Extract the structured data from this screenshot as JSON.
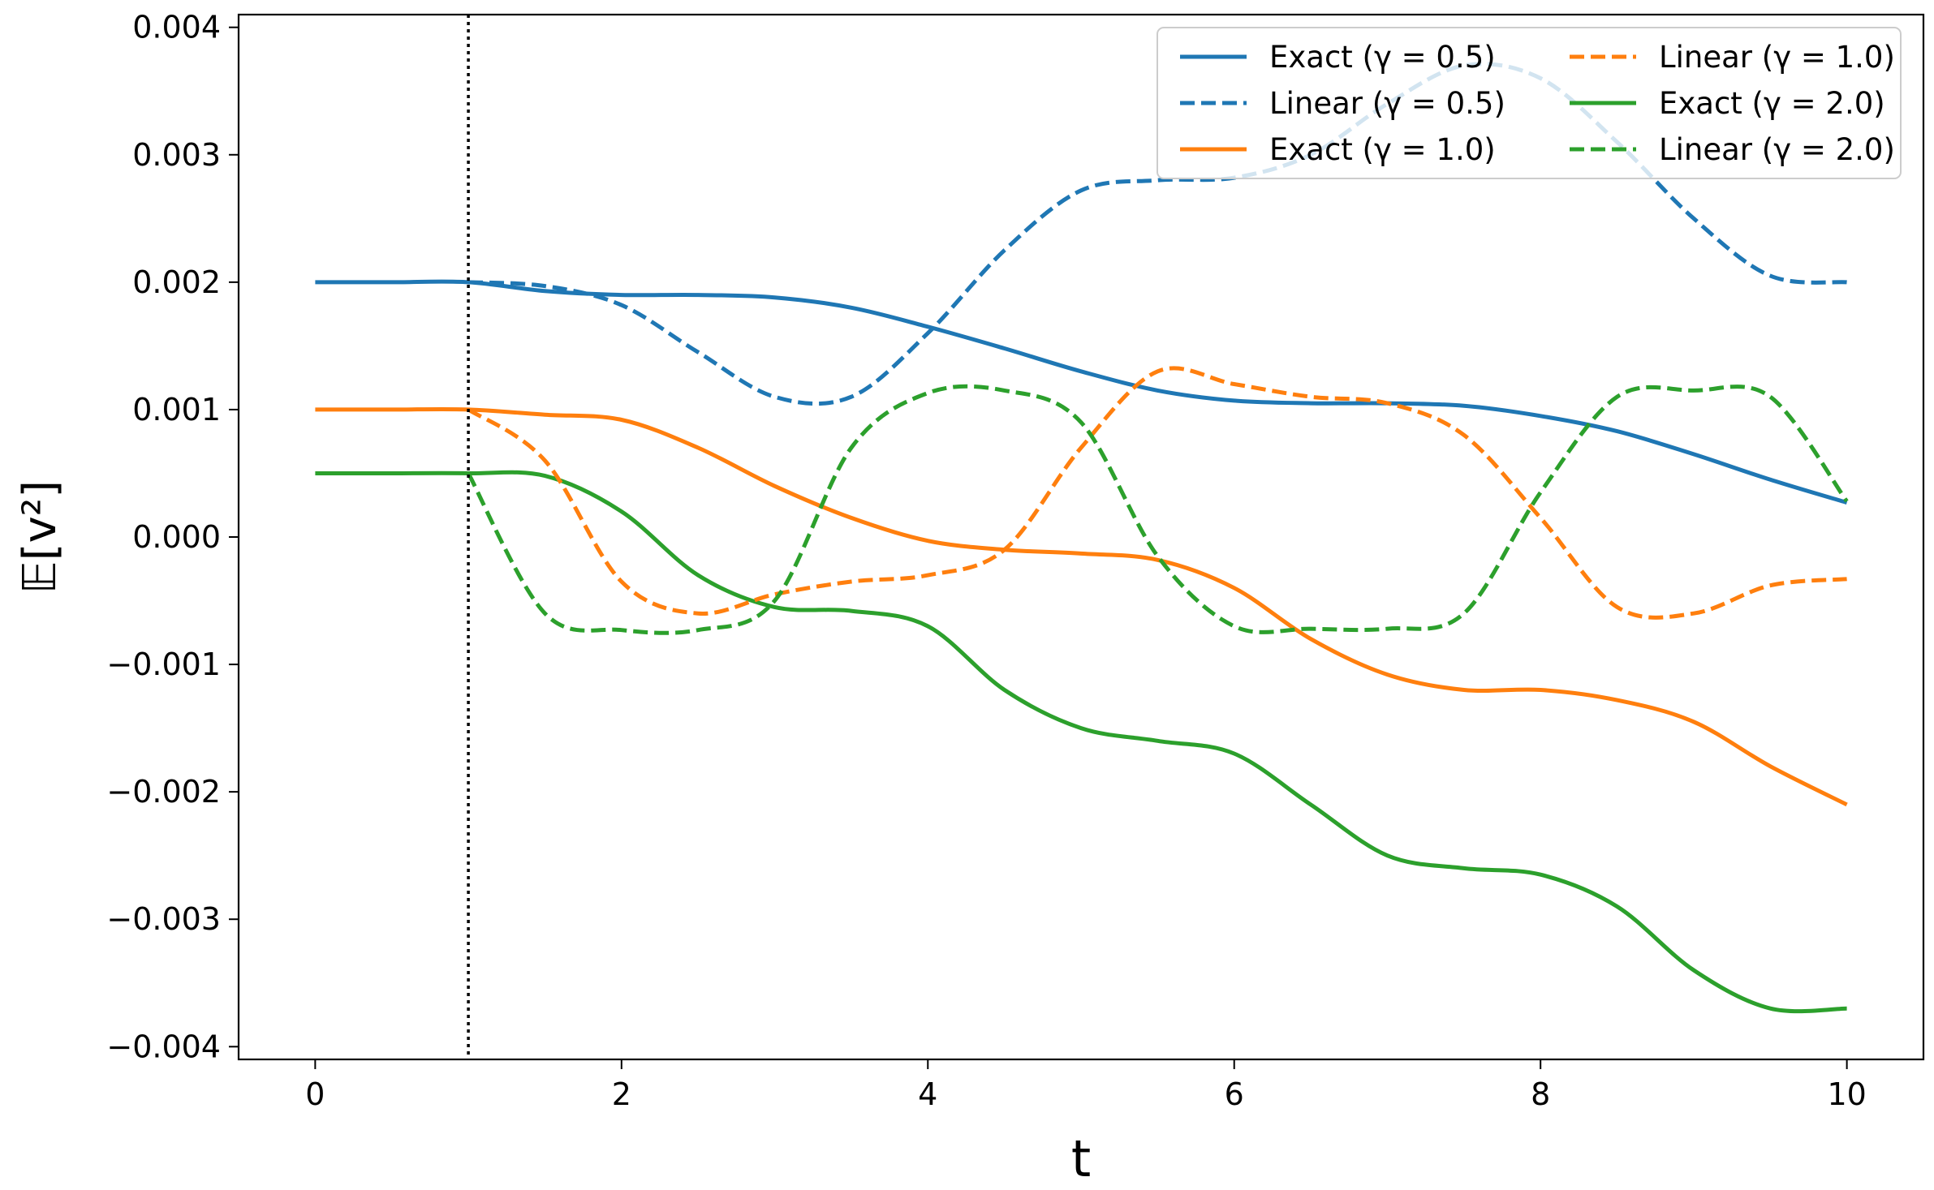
{
  "chart_data": {
    "type": "line",
    "xlabel": "t",
    "ylabel": "𝔼[v²]",
    "xlim": [
      -0.5,
      10.5
    ],
    "ylim": [
      -0.0041,
      0.0041
    ],
    "xticks": [
      0,
      2,
      4,
      6,
      8,
      10
    ],
    "yticks": [
      0.004,
      0.003,
      0.002,
      0.001,
      0.0,
      -0.001,
      -0.002,
      -0.003,
      -0.004
    ],
    "xtick_labels": [
      "0",
      "2",
      "4",
      "6",
      "8",
      "10"
    ],
    "ytick_labels": [
      "0.004",
      "0.003",
      "0.002",
      "0.001",
      "0.000",
      "−0.001",
      "−0.002",
      "−0.003",
      "−0.004"
    ],
    "vline": {
      "x": 1.0,
      "style": "dotted",
      "color": "#000000"
    },
    "grid": false,
    "legend": {
      "placement": "top-right",
      "columns": 2
    },
    "x": [
      0,
      0.5,
      1,
      1.5,
      2,
      2.5,
      3,
      3.5,
      4,
      4.5,
      5,
      5.5,
      6,
      6.5,
      7,
      7.5,
      8,
      8.5,
      9,
      9.5,
      10
    ],
    "series": [
      {
        "name": "Exact (γ = 0.5)",
        "color": "#1f77b4",
        "dash": "solid",
        "values": [
          0.002,
          0.002,
          0.002,
          0.00193,
          0.0019,
          0.0019,
          0.00188,
          0.0018,
          0.00165,
          0.00148,
          0.0013,
          0.00115,
          0.00107,
          0.00105,
          0.00105,
          0.00103,
          0.00095,
          0.00083,
          0.00065,
          0.00045,
          0.00027
        ]
      },
      {
        "name": "Linear (γ = 0.5)",
        "color": "#1f77b4",
        "dash": "dashed",
        "values": [
          null,
          null,
          0.002,
          0.00197,
          0.00182,
          0.00145,
          0.0011,
          0.0011,
          0.0016,
          0.00225,
          0.00272,
          0.0028,
          0.00282,
          0.003,
          0.0034,
          0.0037,
          0.0036,
          0.0031,
          0.0025,
          0.00205,
          0.002
        ]
      },
      {
        "name": "Exact (γ = 1.0)",
        "color": "#ff7f0e",
        "dash": "solid",
        "values": [
          0.001,
          0.001,
          0.001,
          0.00096,
          0.00092,
          0.0007,
          0.0004,
          0.00015,
          -3e-05,
          -0.0001,
          -0.00013,
          -0.00018,
          -0.0004,
          -0.0008,
          -0.00108,
          -0.0012,
          -0.0012,
          -0.00128,
          -0.00145,
          -0.0018,
          -0.0021
        ]
      },
      {
        "name": "Linear (γ = 1.0)",
        "color": "#ff7f0e",
        "dash": "dashed",
        "values": [
          null,
          null,
          0.001,
          0.0006,
          -0.00035,
          -0.0006,
          -0.00045,
          -0.00035,
          -0.0003,
          -0.0001,
          0.0007,
          0.0013,
          0.0012,
          0.0011,
          0.00105,
          0.0008,
          0.00015,
          -0.00055,
          -0.0006,
          -0.00038,
          -0.00033
        ]
      },
      {
        "name": "Exact (γ = 2.0)",
        "color": "#2ca02c",
        "dash": "solid",
        "values": [
          0.0005,
          0.0005,
          0.0005,
          0.00048,
          0.0002,
          -0.0003,
          -0.00055,
          -0.00058,
          -0.0007,
          -0.0012,
          -0.0015,
          -0.0016,
          -0.0017,
          -0.0021,
          -0.0025,
          -0.0026,
          -0.00265,
          -0.0029,
          -0.0034,
          -0.0037,
          -0.0037
        ]
      },
      {
        "name": "Linear (γ = 2.0)",
        "color": "#2ca02c",
        "dash": "dashed",
        "values": [
          null,
          null,
          0.0005,
          -0.0006,
          -0.00073,
          -0.00073,
          -0.0005,
          0.0007,
          0.00113,
          0.00115,
          0.0009,
          -0.00015,
          -0.0007,
          -0.00072,
          -0.00072,
          -0.0006,
          0.00035,
          0.0011,
          0.00115,
          0.0011,
          0.00028
        ]
      }
    ]
  }
}
